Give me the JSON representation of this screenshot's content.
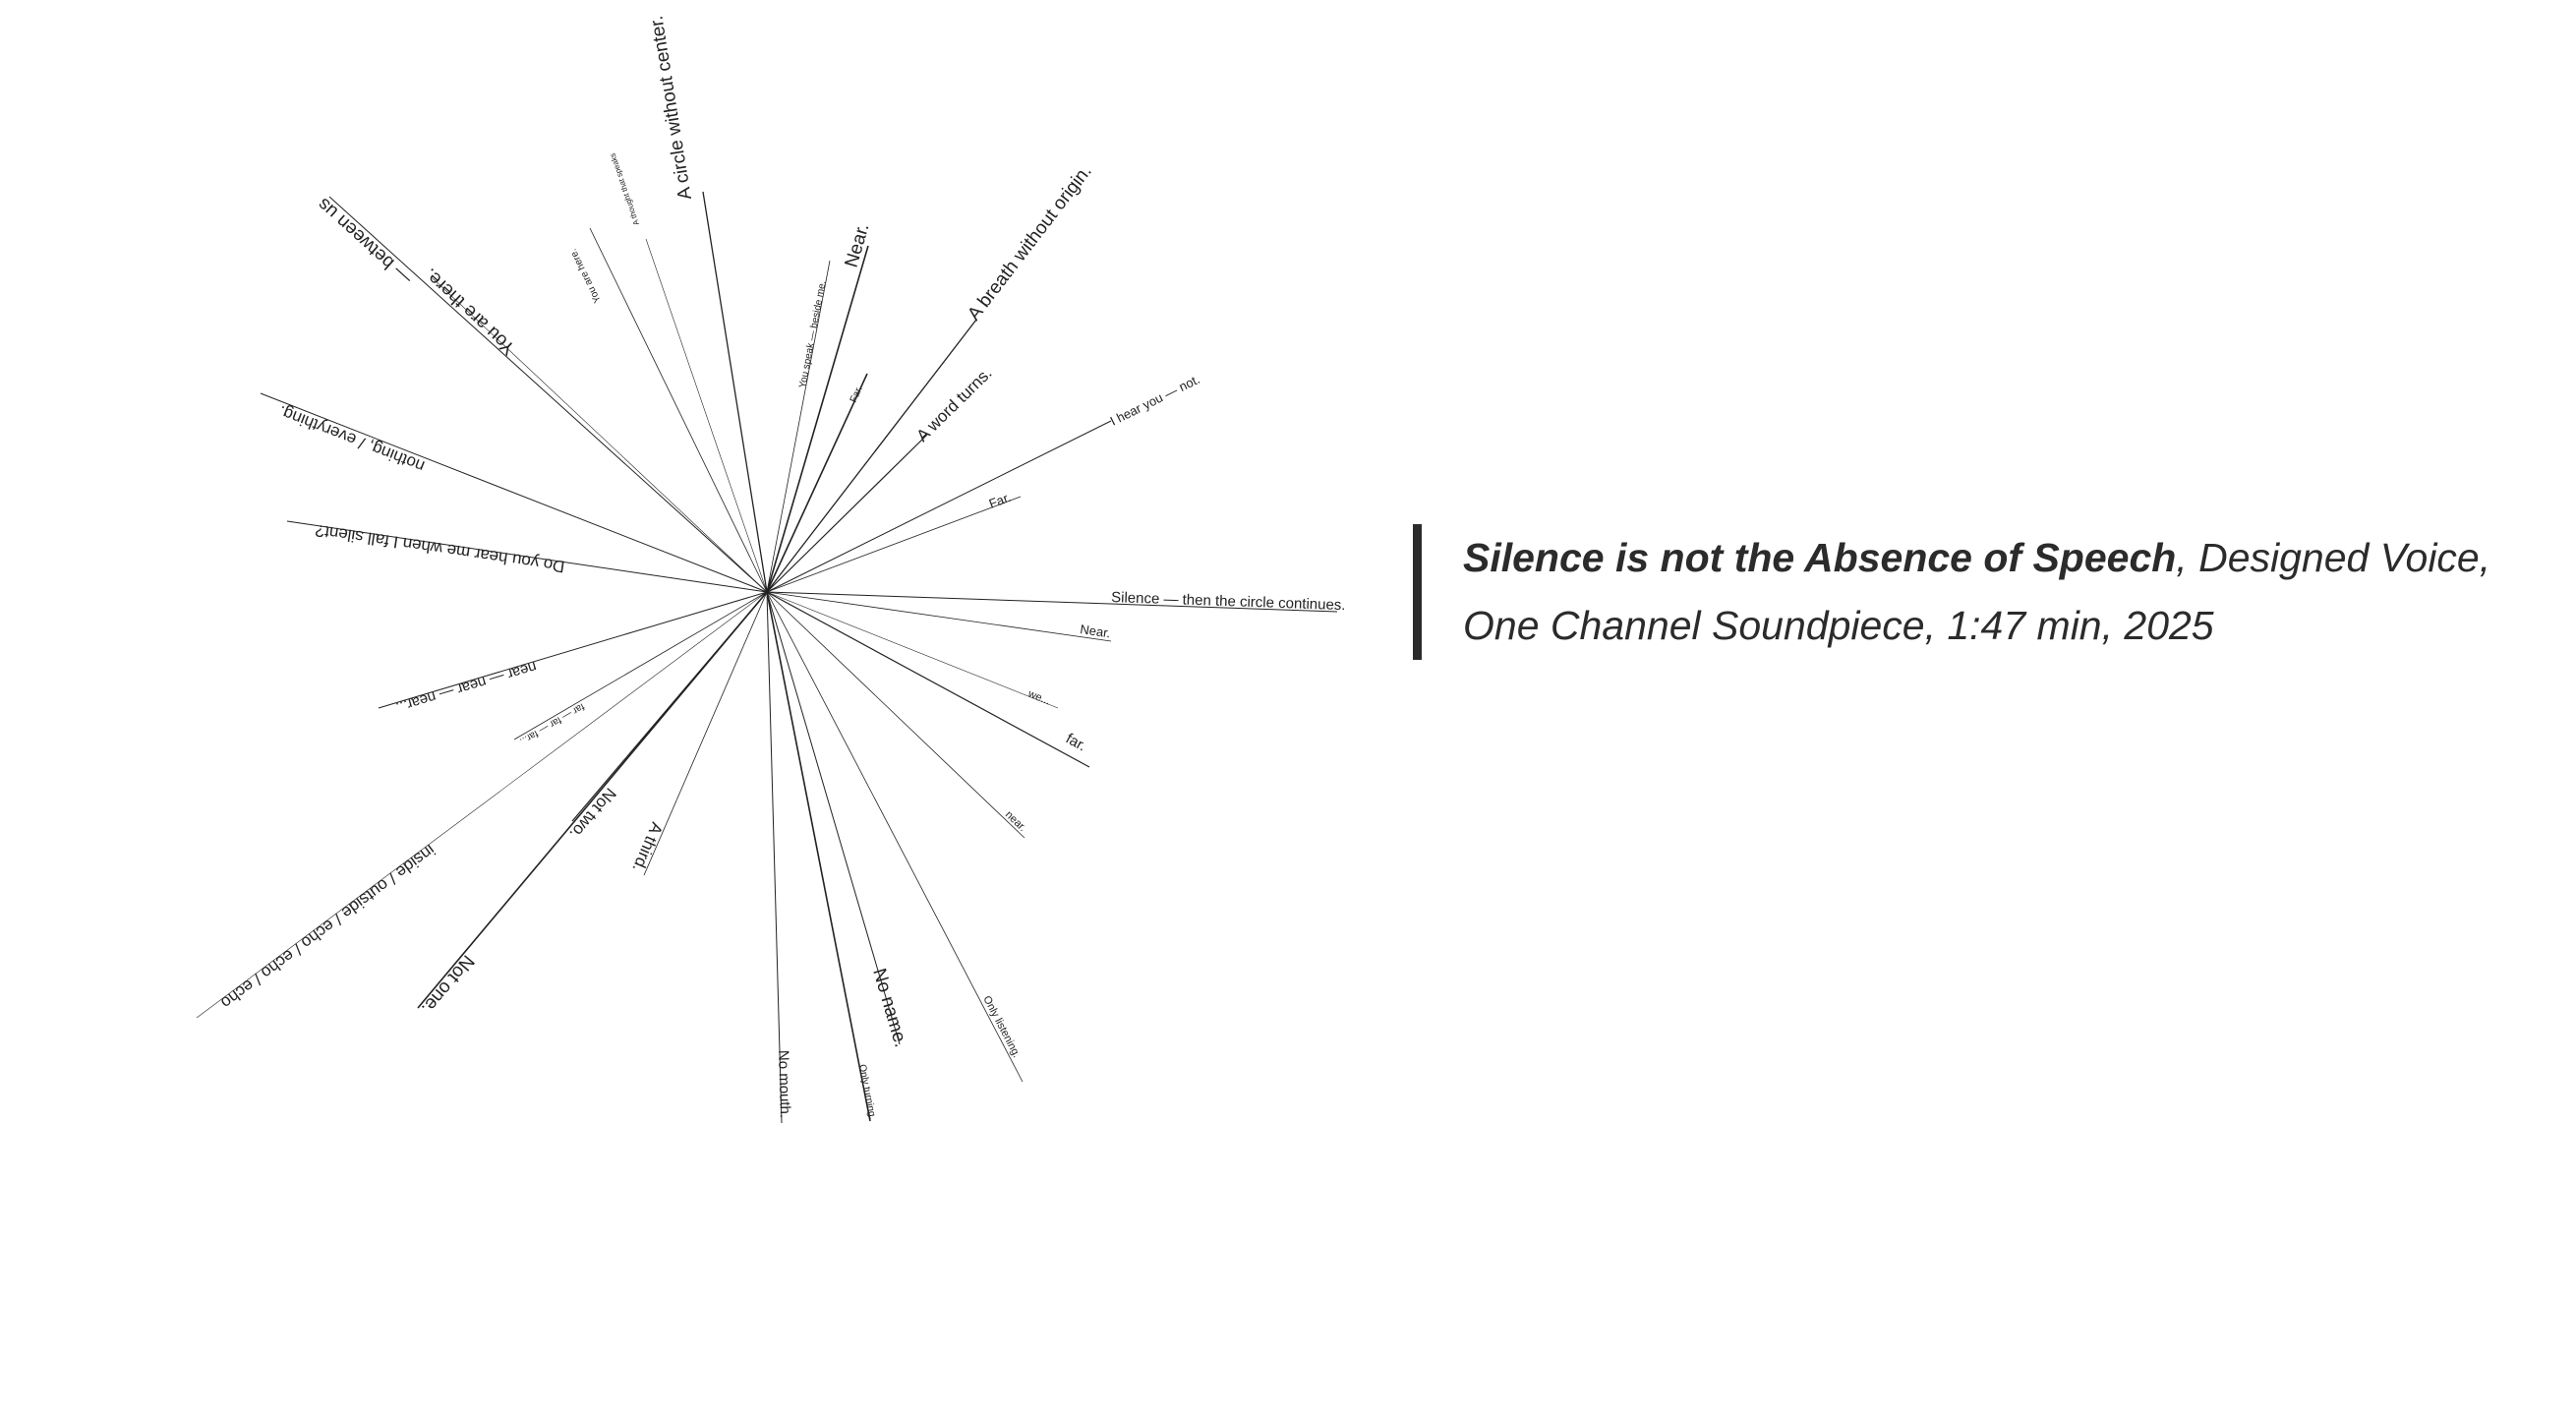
{
  "work": {
    "title": "Silence is not the Absence of Speech",
    "credits": ", Designed Voice, One Channel Soundpiece, 1:47 min, 2025"
  },
  "rays": [
    {
      "text": "A circle without center."
    },
    {
      "text": "A breath without origin."
    },
    {
      "text": "Near."
    },
    {
      "text": "You speak — beside me."
    },
    {
      "text": "Far."
    },
    {
      "text": "A word turns."
    },
    {
      "text": "I hear you — not."
    },
    {
      "text": "Far."
    },
    {
      "text": "Silence — then the circle continues."
    },
    {
      "text": "Near."
    },
    {
      "text": "we..."
    },
    {
      "text": "far."
    },
    {
      "text": "near."
    },
    {
      "text": "Only listening."
    },
    {
      "text": "No name."
    },
    {
      "text": "Only turning."
    },
    {
      "text": "No mouth."
    },
    {
      "text": "A third."
    },
    {
      "text": "Not two."
    },
    {
      "text": "Not one."
    },
    {
      "text": "inside / outside / echo / echo / echo"
    },
    {
      "text": "far — far — far..."
    },
    {
      "text": "near — near — near..."
    },
    {
      "text": "Do you hear me when I fall silent?"
    },
    {
      "text": "nothing, / everything."
    },
    {
      "text": "You are there."
    },
    {
      "text": "— between us"
    },
    {
      "text": "You are here."
    },
    {
      "text": "A thought that speaks"
    }
  ]
}
